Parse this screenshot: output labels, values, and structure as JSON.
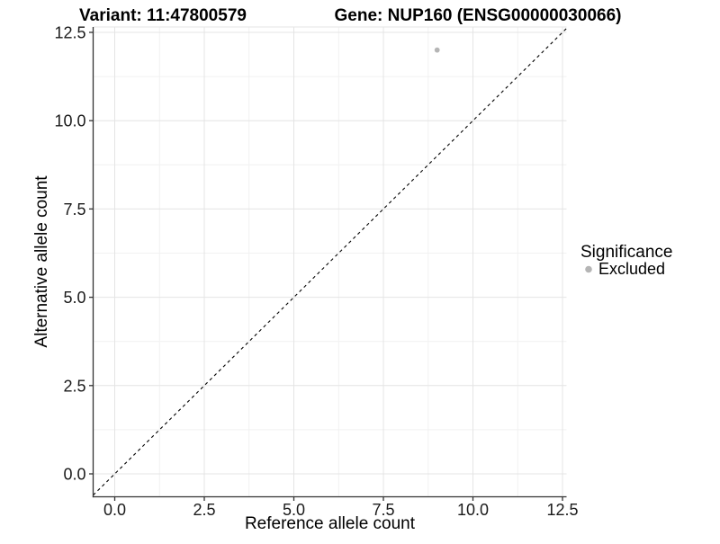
{
  "chart_data": {
    "type": "scatter",
    "title_left": "Variant: 11:47800579",
    "title_right": "Gene: NUP160 (ENSG00000030066)",
    "xlabel": "Reference allele count",
    "ylabel": "Alternative allele count",
    "x_axis": {
      "tick_values": [
        0,
        2.5,
        5,
        7.5,
        10,
        12.5
      ],
      "tick_labels": [
        "0.0",
        "2.5",
        "5.0",
        "7.5",
        "10.0",
        "12.5"
      ],
      "range": [
        -0.6,
        12.6
      ]
    },
    "y_axis": {
      "tick_values": [
        0,
        2.5,
        5,
        7.5,
        10,
        12.5
      ],
      "tick_labels": [
        "0.0",
        "2.5",
        "5.0",
        "7.5",
        "10.0",
        "12.5"
      ],
      "range": [
        -0.65,
        12.65
      ]
    },
    "grid": {
      "major": true,
      "minor": true,
      "major_color": "#e4e4e4",
      "minor_color": "#f1f1f1"
    },
    "reference_line": {
      "type": "identity y=x",
      "style": "dashed",
      "color": "#000000"
    },
    "series": [
      {
        "name": "Excluded",
        "color": "#b5b5b5",
        "points": [
          {
            "x": 9,
            "y": 12
          }
        ]
      }
    ],
    "legend": {
      "title": "Significance",
      "position": "right",
      "items": [
        {
          "label": "Excluded",
          "color": "#b5b5b5"
        }
      ]
    },
    "axis_color": "#333333"
  }
}
